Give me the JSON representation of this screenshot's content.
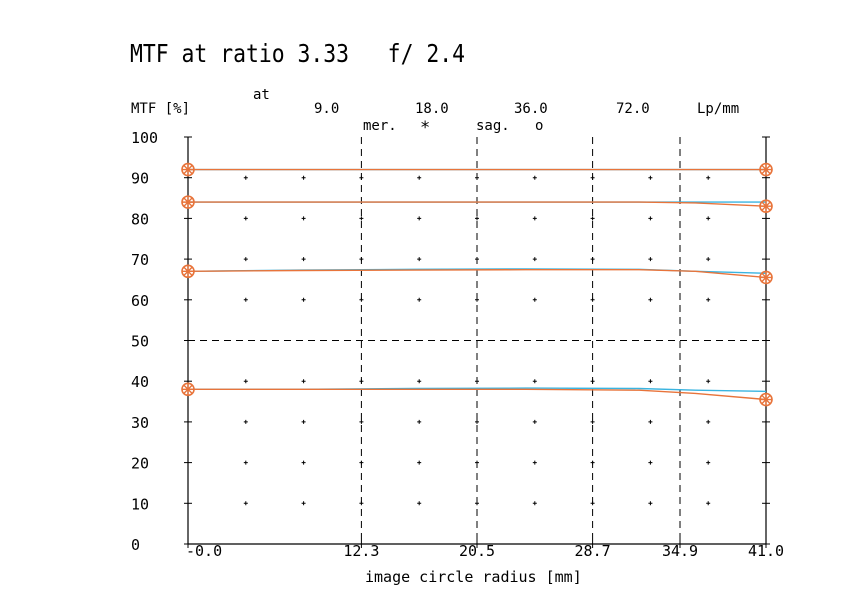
{
  "chart_data": {
    "type": "line",
    "title": "MTF at ratio 3.33   f/ 2.4",
    "ylabel": "MTF [%]",
    "xlabel": "image circle radius [mm]",
    "at_label": "at",
    "unit_label": "Lp/mm",
    "frequency_labels": [
      "9.0",
      "18.0",
      "36.0",
      "72.0"
    ],
    "legend": {
      "meridional": "mer.",
      "meridional_marker": "*",
      "sagittal": "sag.",
      "sagittal_marker": "o"
    },
    "ylim": [
      0,
      100
    ],
    "xlim": [
      0,
      41.0
    ],
    "y_ticks": [
      0,
      10,
      20,
      30,
      40,
      50,
      60,
      70,
      80,
      90,
      100
    ],
    "y_tick_labels": [
      "0",
      "10",
      "20",
      "30",
      "40",
      "50",
      "60",
      "70",
      "80",
      "90",
      "100"
    ],
    "x_ticks": [
      0,
      12.3,
      20.5,
      28.7,
      34.9,
      41.0
    ],
    "x_tick_labels": [
      "-0.0",
      "12.3",
      "20.5",
      "28.7",
      "34.9",
      "41.0"
    ],
    "grid": "dashed verticals at x ticks, dashed horizontal at 50, dot grid elsewhere",
    "colors": {
      "meridional": "#e8743b",
      "sagittal": "#3ab4e0",
      "axes": "#000000"
    },
    "series": [
      {
        "frequency": "9.0",
        "type": "meridional",
        "x": [
          0,
          8,
          16,
          24,
          32,
          36,
          41
        ],
        "values": [
          92,
          92,
          92,
          92,
          92,
          92,
          92
        ]
      },
      {
        "frequency": "9.0",
        "type": "sagittal",
        "x": [
          0,
          8,
          16,
          24,
          32,
          36,
          41
        ],
        "values": [
          92,
          92,
          92,
          92,
          92,
          92,
          92
        ]
      },
      {
        "frequency": "18.0",
        "type": "meridional",
        "x": [
          0,
          8,
          16,
          24,
          32,
          36,
          41
        ],
        "values": [
          84,
          84,
          84,
          84,
          84,
          83.8,
          83
        ]
      },
      {
        "frequency": "18.0",
        "type": "sagittal",
        "x": [
          0,
          8,
          16,
          24,
          32,
          36,
          41
        ],
        "values": [
          84,
          84,
          84,
          84,
          84,
          84,
          84
        ]
      },
      {
        "frequency": "36.0",
        "type": "meridional",
        "x": [
          0,
          8,
          16,
          24,
          32,
          36,
          41
        ],
        "values": [
          67,
          67.2,
          67.3,
          67.4,
          67.4,
          67,
          65.5
        ]
      },
      {
        "frequency": "36.0",
        "type": "sagittal",
        "x": [
          0,
          8,
          16,
          24,
          32,
          36,
          41
        ],
        "values": [
          67,
          67.3,
          67.5,
          67.6,
          67.5,
          67,
          66.5
        ]
      },
      {
        "frequency": "72.0",
        "type": "meridional",
        "x": [
          0,
          8,
          16,
          24,
          32,
          36,
          41
        ],
        "values": [
          38,
          38,
          38,
          38,
          37.8,
          37,
          35.5
        ]
      },
      {
        "frequency": "72.0",
        "type": "sagittal",
        "x": [
          0,
          8,
          16,
          24,
          32,
          36,
          41
        ],
        "values": [
          38,
          38,
          38.2,
          38.3,
          38.2,
          37.8,
          37.5
        ]
      }
    ]
  }
}
